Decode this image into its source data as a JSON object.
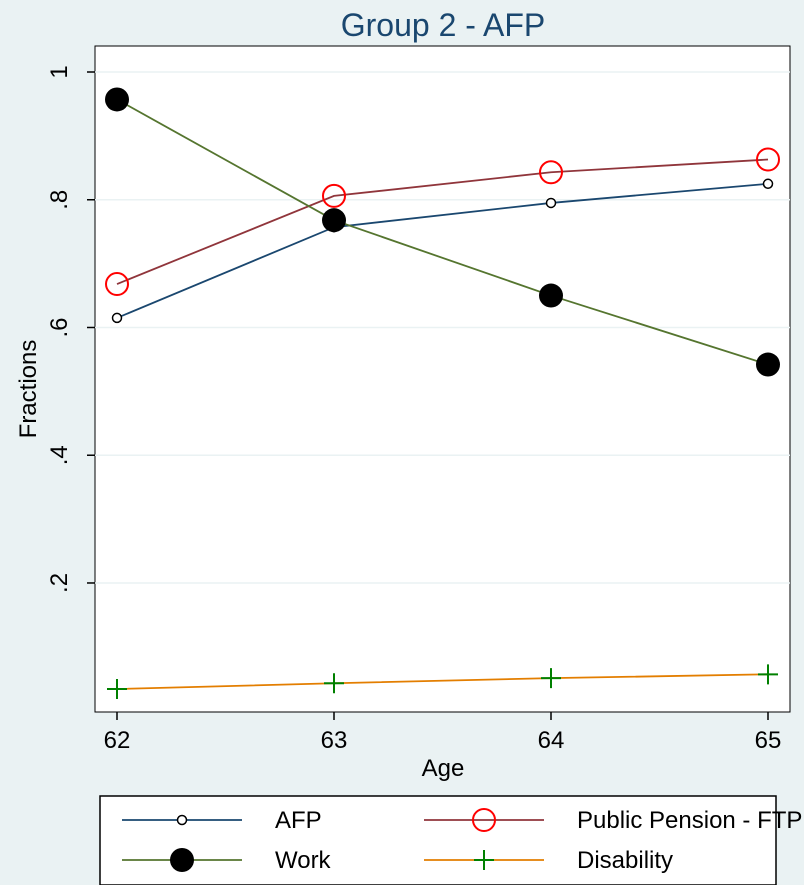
{
  "chart_data": {
    "type": "line",
    "title": "Group 2 - AFP",
    "xlabel": "Age",
    "ylabel": "Fractions",
    "x": [
      62,
      63,
      64,
      65
    ],
    "xticks": [
      62,
      63,
      64,
      65
    ],
    "xtick_labels": [
      "62",
      "63",
      "64",
      "65"
    ],
    "yticks": [
      0.2,
      0.4,
      0.6,
      0.8,
      1.0
    ],
    "ytick_labels": [
      ".2",
      ".4",
      ".6",
      ".8",
      "1"
    ],
    "xlim": [
      62,
      65
    ],
    "ylim": [
      -0.002,
      1.0
    ],
    "grid": true,
    "legend_position": "bottom",
    "series": [
      {
        "name": "AFP",
        "values": [
          0.615,
          0.757,
          0.795,
          0.825
        ],
        "color": "#1a476f",
        "marker": "small-hollow-circle"
      },
      {
        "name": "Public Pension - FTP",
        "values": [
          0.668,
          0.806,
          0.843,
          0.863
        ],
        "color": "#90353b",
        "marker_color": "#ff0000",
        "marker": "large-hollow-circle"
      },
      {
        "name": "Work",
        "values": [
          0.957,
          0.768,
          0.65,
          0.542
        ],
        "color": "#55752f",
        "marker": "large-filled-circle"
      },
      {
        "name": "Disability",
        "values": [
          0.034,
          0.043,
          0.051,
          0.057
        ],
        "color": "#e37e00",
        "marker_color": "#008000",
        "marker": "plus"
      }
    ]
  }
}
